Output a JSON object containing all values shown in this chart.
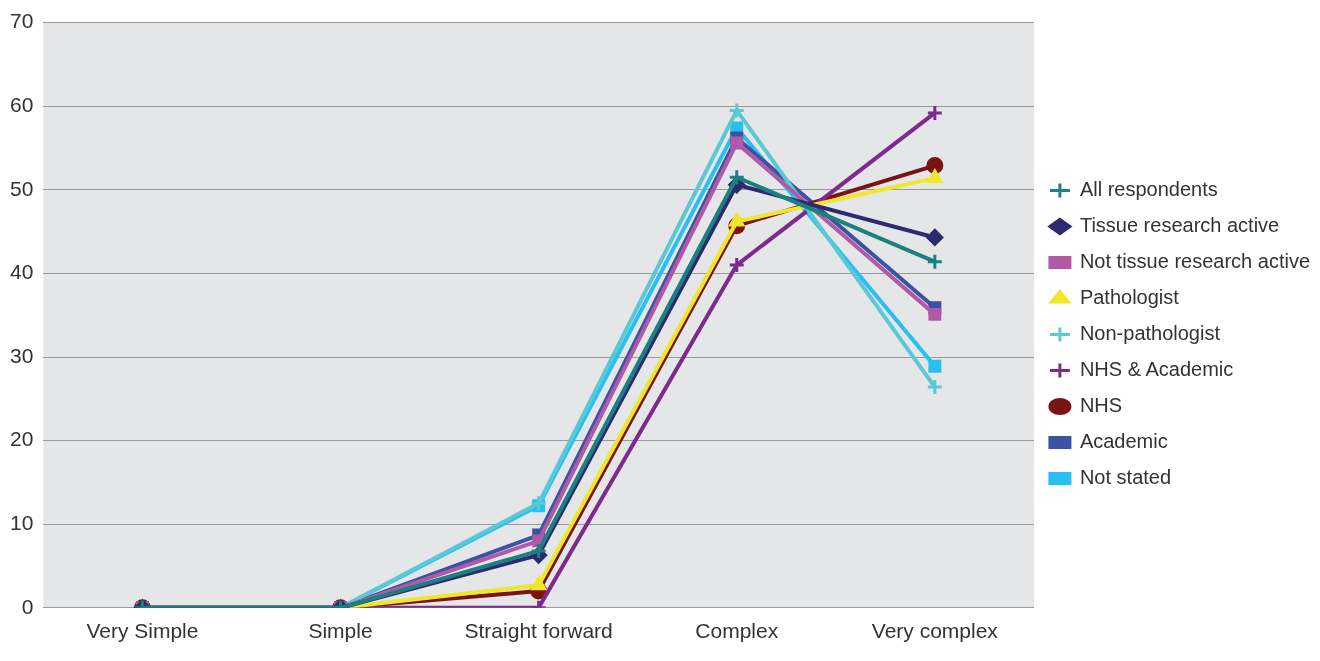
{
  "chart_data": {
    "type": "line",
    "categories": [
      "Very Simple",
      "Simple",
      "Straight forward",
      "Complex",
      "Very complex"
    ],
    "ylim": [
      0,
      70
    ],
    "yticks": [
      0,
      10,
      20,
      30,
      40,
      50,
      60,
      70
    ],
    "grid": "y",
    "legend": "right",
    "line_style": "solid",
    "series": [
      {
        "name": "All respondents",
        "color": "#1a8080",
        "marker": "cross",
        "values": [
          0,
          0,
          6.8,
          51.5,
          41.4
        ]
      },
      {
        "name": "Tissue research active",
        "color": "#2e2a6e",
        "marker": "diamond",
        "values": [
          0,
          0,
          6.3,
          50.6,
          44.3
        ]
      },
      {
        "name": "Not tissue research active",
        "color": "#b05aa5",
        "marker": "square",
        "values": [
          0,
          0,
          8.0,
          55.6,
          35.1
        ]
      },
      {
        "name": "Pathologist",
        "color": "#f0e62a",
        "marker": "triangle",
        "values": [
          0,
          0,
          2.7,
          46.2,
          51.4
        ]
      },
      {
        "name": "Non-pathologist",
        "color": "#5bc8d8",
        "marker": "cross",
        "values": [
          0,
          0,
          12.5,
          59.5,
          26.4
        ]
      },
      {
        "name": "NHS & Academic",
        "color": "#7d2a8c",
        "marker": "cross",
        "values": [
          0,
          0,
          0,
          41,
          59.2
        ]
      },
      {
        "name": "NHS",
        "color": "#7a1414",
        "marker": "circle",
        "values": [
          0,
          0,
          2.0,
          45.7,
          52.9
        ]
      },
      {
        "name": "Academic",
        "color": "#3c52a4",
        "marker": "square",
        "values": [
          0,
          0,
          8.7,
          56.2,
          35.9
        ]
      },
      {
        "name": "Not stated",
        "color": "#28c0f0",
        "marker": "square",
        "values": [
          0,
          0,
          12.2,
          57.4,
          28.9
        ]
      }
    ]
  }
}
